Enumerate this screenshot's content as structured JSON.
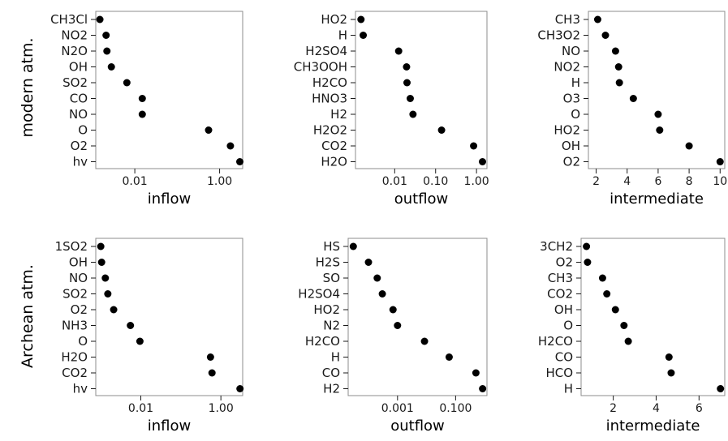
{
  "figure": {
    "row_titles": [
      "modern atm.",
      "Archean atm."
    ]
  },
  "chart_data": [
    {
      "type": "scatter",
      "panel": "modern-inflow",
      "xlabel": "inflow",
      "xscale": "log",
      "xlim": [
        0.0012,
        3.5
      ],
      "xticks": [
        0.01,
        1.0
      ],
      "xtick_labels": [
        "0.01",
        "1.00"
      ],
      "categories": [
        "CH3Cl",
        "NO2",
        "N2O",
        "OH",
        "SO2",
        "CO",
        "NO",
        "O",
        "O2",
        "hv"
      ],
      "values": [
        0.0015,
        0.0021,
        0.0022,
        0.0028,
        0.0065,
        0.015,
        0.015,
        0.55,
        1.8,
        3.0
      ]
    },
    {
      "type": "scatter",
      "panel": "modern-outflow",
      "xlabel": "outflow",
      "xscale": "log",
      "xlim": [
        0.0011,
        1.8
      ],
      "xticks": [
        0.01,
        0.1,
        1.0
      ],
      "xtick_labels": [
        "0.01",
        "0.10",
        "1.00"
      ],
      "categories": [
        "HO2",
        "H",
        "H2SO4",
        "CH3OOH",
        "H2CO",
        "HNO3",
        "H2",
        "H2O2",
        "CO2",
        "H2O"
      ],
      "values": [
        0.0015,
        0.0017,
        0.0125,
        0.0195,
        0.02,
        0.024,
        0.028,
        0.14,
        0.85,
        1.4
      ]
    },
    {
      "type": "scatter",
      "panel": "modern-intermediate",
      "xlabel": "intermediate",
      "xscale": "linear",
      "xlim": [
        1.5,
        10.3
      ],
      "xticks": [
        2,
        4,
        6,
        8,
        10
      ],
      "xtick_labels": [
        "2",
        "4",
        "6",
        "8",
        "10"
      ],
      "categories": [
        "CH3",
        "CH3O2",
        "NO",
        "NO2",
        "H",
        "O3",
        "O",
        "HO2",
        "OH",
        "O2"
      ],
      "values": [
        2.1,
        2.6,
        3.25,
        3.45,
        3.5,
        4.4,
        6.0,
        6.1,
        8.0,
        10.0
      ]
    },
    {
      "type": "scatter",
      "panel": "archean-inflow",
      "xlabel": "inflow",
      "xscale": "log",
      "xlim": [
        0.00075,
        3.5
      ],
      "xticks": [
        0.01,
        1.0
      ],
      "xtick_labels": [
        "0.01",
        "1.00"
      ],
      "categories": [
        "1SO2",
        "OH",
        "NO",
        "SO2",
        "O2",
        "NH3",
        "O",
        "H2O",
        "CO2",
        "hv"
      ],
      "values": [
        0.001,
        0.00105,
        0.0013,
        0.0015,
        0.0021,
        0.0055,
        0.0095,
        0.55,
        0.6,
        3.0
      ]
    },
    {
      "type": "scatter",
      "panel": "archean-outflow",
      "xlabel": "outflow",
      "xscale": "log",
      "xlim": [
        2e-05,
        1.2
      ],
      "xticks": [
        0.001,
        0.1
      ],
      "xtick_labels": [
        "0.001",
        "0.100"
      ],
      "categories": [
        "HS",
        "H2S",
        "SO",
        "H2SO4",
        "HO2",
        "N2",
        "H2CO",
        "H",
        "CO",
        "H2"
      ],
      "values": [
        3e-05,
        0.0001,
        0.0002,
        0.0003,
        0.0007,
        0.001,
        0.0085,
        0.06,
        0.5,
        0.85
      ]
    },
    {
      "type": "scatter",
      "panel": "archean-intermediate",
      "xlabel": "intermediate",
      "xscale": "linear",
      "xlim": [
        0.5,
        7.2
      ],
      "xticks": [
        2,
        4,
        6
      ],
      "xtick_labels": [
        "2",
        "4",
        "6"
      ],
      "categories": [
        "3CH2",
        "O2",
        "CH3",
        "CO2",
        "OH",
        "O",
        "H2CO",
        "CO",
        "HCO",
        "H"
      ],
      "values": [
        0.75,
        0.8,
        1.5,
        1.7,
        2.1,
        2.5,
        2.7,
        4.6,
        4.7,
        7.0
      ]
    }
  ]
}
